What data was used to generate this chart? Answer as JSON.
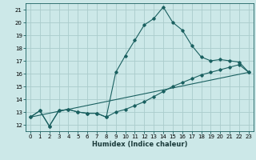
{
  "xlabel": "Humidex (Indice chaleur)",
  "bg_color": "#cce8e8",
  "grid_color": "#aacccc",
  "line_color": "#1a6060",
  "xlim": [
    -0.5,
    23.5
  ],
  "ylim": [
    11.5,
    21.5
  ],
  "xticks": [
    0,
    1,
    2,
    3,
    4,
    5,
    6,
    7,
    8,
    9,
    10,
    11,
    12,
    13,
    14,
    15,
    16,
    17,
    18,
    19,
    20,
    21,
    22,
    23
  ],
  "yticks": [
    12,
    13,
    14,
    15,
    16,
    17,
    18,
    19,
    20,
    21
  ],
  "line1_x": [
    0,
    1,
    2,
    3,
    4,
    5,
    6,
    7,
    8,
    9,
    10,
    11,
    12,
    13,
    14,
    15,
    16,
    17,
    18,
    19,
    20,
    21,
    22,
    23
  ],
  "line1_y": [
    12.6,
    13.1,
    11.9,
    13.1,
    13.2,
    13.0,
    12.9,
    12.9,
    12.6,
    16.1,
    17.4,
    18.6,
    19.8,
    20.3,
    21.2,
    20.0,
    19.4,
    18.2,
    17.3,
    17.0,
    17.1,
    17.0,
    16.9,
    16.1
  ],
  "line2_x": [
    0,
    1,
    2,
    3,
    4,
    5,
    6,
    7,
    8,
    9,
    10,
    11,
    12,
    13,
    14,
    15,
    16,
    17,
    18,
    19,
    20,
    21,
    22,
    23
  ],
  "line2_y": [
    12.6,
    13.1,
    11.9,
    13.1,
    13.2,
    13.0,
    12.9,
    12.9,
    12.6,
    13.0,
    13.2,
    13.5,
    13.8,
    14.2,
    14.6,
    15.0,
    15.3,
    15.6,
    15.9,
    16.1,
    16.3,
    16.5,
    16.7,
    16.1
  ],
  "line3_x": [
    0,
    23
  ],
  "line3_y": [
    12.6,
    16.1
  ],
  "tick_fontsize": 5.0,
  "xlabel_fontsize": 6.0
}
